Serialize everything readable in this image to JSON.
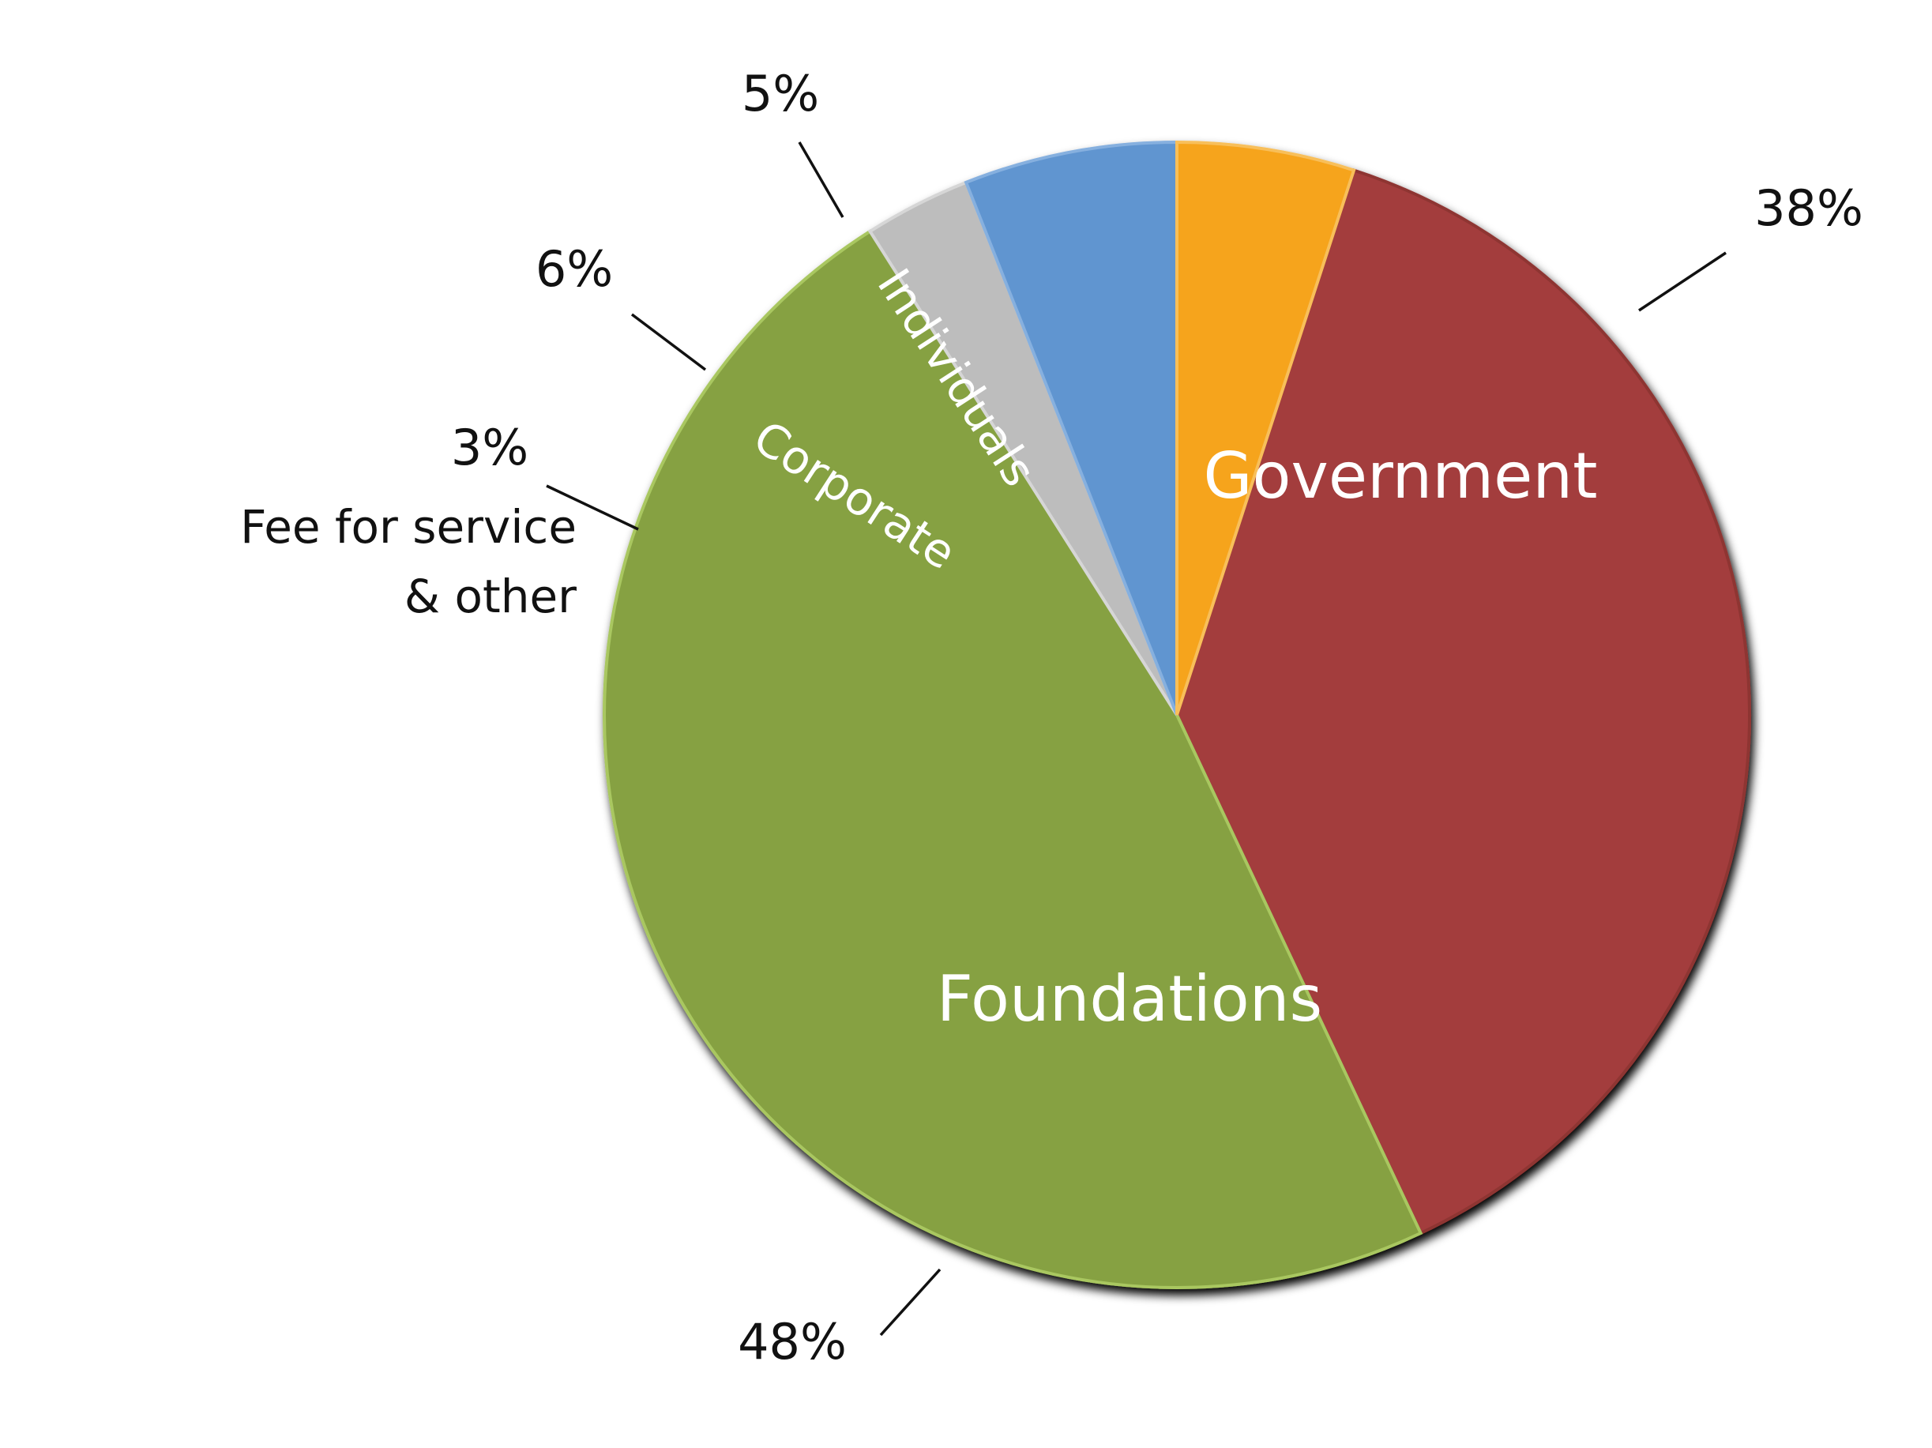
{
  "chart_data": {
    "type": "pie",
    "title": "",
    "slices": [
      {
        "name": "Government",
        "value": 38,
        "label": "38%",
        "color": "#A33E3D",
        "edge": "#8E3433"
      },
      {
        "name": "Foundations",
        "value": 48,
        "label": "48%",
        "color": "#86A143",
        "edge": "#A9C761"
      },
      {
        "name": "Fee for service & other",
        "value": 3,
        "label": "3%",
        "color": "#BDBDBD",
        "edge": "#D6D6D6"
      },
      {
        "name": "Corporate",
        "value": 6,
        "label": "6%",
        "color": "#6095D0",
        "edge": "#86B0DF"
      },
      {
        "name": "Individuals",
        "value": 5,
        "label": "5%",
        "color": "#F6A41E",
        "edge": "#F8BF5A"
      }
    ],
    "fee_label_lines": [
      "Fee for service",
      "& other"
    ],
    "start_angle_deg": -72,
    "direction": "clockwise",
    "legend": "none"
  }
}
